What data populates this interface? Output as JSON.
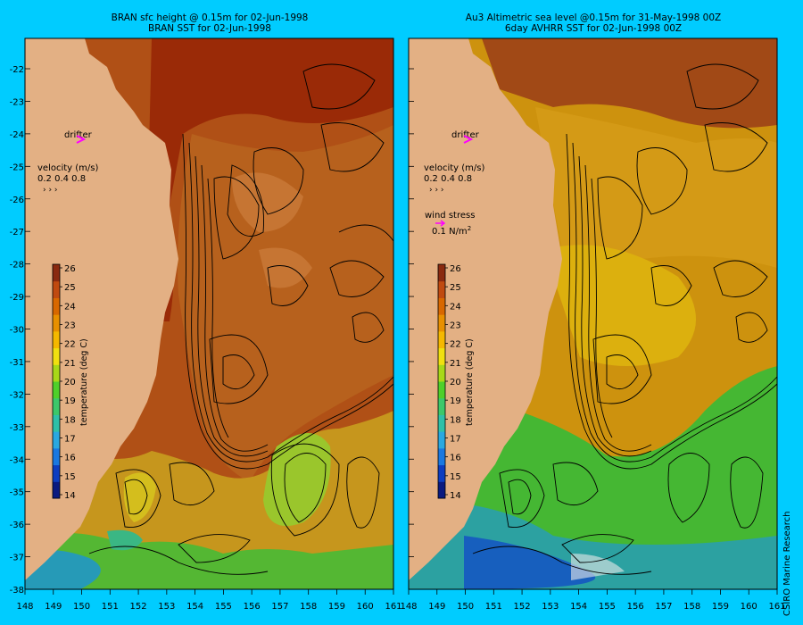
{
  "left_panel": {
    "title_line1": "BRAN sfc height @ 0.15m  for 02-Jun-1998",
    "title_line2": "BRAN SST for 02-Jun-1998",
    "drifter_label": "drifter",
    "velocity_label": "velocity (m/s)",
    "velocity_values": "0.2 0.4 0.8"
  },
  "right_panel": {
    "title_line1": "Au3 Altimetric sea level  @0.15m  for 31-May-1998 00Z",
    "title_line2": "6day AVHRR SST for 02-Jun-1998 00Z",
    "drifter_label": "drifter",
    "velocity_label": "velocity (m/s)",
    "velocity_values": "0.2 0.4 0.8",
    "wind_stress_label": "wind stress",
    "wind_stress_value": "0.1 N/m",
    "wind_stress_exp": "2"
  },
  "colorbar": {
    "label": "temperature (deg C)",
    "ticks": [
      "26",
      "25",
      "24",
      "23",
      "22",
      "21",
      "20",
      "19",
      "18",
      "17",
      "16",
      "15",
      "14"
    ],
    "colors": [
      "#0a1a80",
      "#0d3dc0",
      "#1a78e0",
      "#2aa8e0",
      "#2fc0a8",
      "#3cc86a",
      "#4fd02a",
      "#a8d818",
      "#f0e010",
      "#f5b800",
      "#e89000",
      "#d86800",
      "#c04a10",
      "#8a2a10"
    ]
  },
  "axes": {
    "x_labels": [
      "148",
      "149",
      "150",
      "151",
      "152",
      "153",
      "154",
      "155",
      "156",
      "157",
      "158",
      "159",
      "160",
      "161"
    ],
    "y_labels": [
      "-22",
      "-23",
      "-24",
      "-25",
      "-26",
      "-27",
      "-28",
      "-29",
      "-30",
      "-31",
      "-32",
      "-33",
      "-34",
      "-35",
      "-36",
      "-37",
      "-38"
    ]
  },
  "credit": "CSIRO Marine Research",
  "colors": {
    "background": "#00ccff",
    "land": "#f8c090",
    "contour": "#000000",
    "drifter": "#ff00ff"
  }
}
